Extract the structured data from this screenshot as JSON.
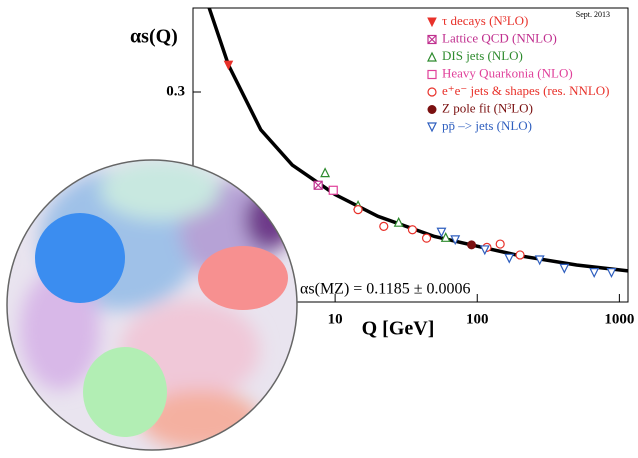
{
  "chart_data": {
    "type": "scatter",
    "stamp": "Sept. 2013",
    "y_label": "αs(Q)",
    "x_label": "Q [GeV]",
    "annotation": "αs(MZ) = 0.1185 ± 0.0006",
    "x_scale": "log",
    "xlim": [
      1,
      1150
    ],
    "xticks": [
      10,
      100,
      1000
    ],
    "ylim": [
      0.05,
      0.4
    ],
    "yticks": [
      0.3
    ],
    "curve": {
      "color": "#000000",
      "x": [
        1.3,
        1.776,
        3,
        5,
        10,
        20,
        50,
        91.2,
        200,
        500,
        1150
      ],
      "values": [
        0.4,
        0.332,
        0.255,
        0.213,
        0.178,
        0.152,
        0.128,
        0.118,
        0.105,
        0.094,
        0.087
      ]
    },
    "series": [
      {
        "name": "τ decays (N³LO)",
        "color": "#e8312a",
        "marker": "tri-down-filled",
        "x": [
          1.776
        ],
        "values": [
          0.332
        ]
      },
      {
        "name": "Lattice QCD (NNLO)",
        "color": "#c0308f",
        "marker": "box-x",
        "x": [
          7.6
        ],
        "values": [
          0.189
        ]
      },
      {
        "name": "DIS jets (NLO)",
        "color": "#2e8b2e",
        "marker": "tri-up-open",
        "x": [
          8.5,
          14.5,
          28,
          60
        ],
        "values": [
          0.204,
          0.165,
          0.145,
          0.127
        ]
      },
      {
        "name": "Heavy Quarkonia (NLO)",
        "color": "#e0409a",
        "marker": "box-open",
        "x": [
          9.7
        ],
        "values": [
          0.183
        ]
      },
      {
        "name": "e⁺e⁻ jets & shapes (res. NNLO)",
        "color": "#e8312a",
        "marker": "circle-open",
        "x": [
          14.5,
          22,
          35,
          44,
          117,
          145,
          200
        ],
        "values": [
          0.16,
          0.14,
          0.136,
          0.126,
          0.115,
          0.119,
          0.106
        ]
      },
      {
        "name": "Z pole fit (N³LO)",
        "color": "#7a1010",
        "marker": "circle-filled",
        "x": [
          91.2
        ],
        "values": [
          0.118
        ]
      },
      {
        "name": "pp̄ –> jets (NLO)",
        "color": "#2f5fbf",
        "marker": "tri-down-open",
        "x": [
          56,
          70,
          113,
          168,
          275,
          410,
          665,
          880
        ],
        "values": [
          0.133,
          0.124,
          0.112,
          0.102,
          0.1,
          0.09,
          0.085,
          0.085
        ]
      }
    ]
  }
}
